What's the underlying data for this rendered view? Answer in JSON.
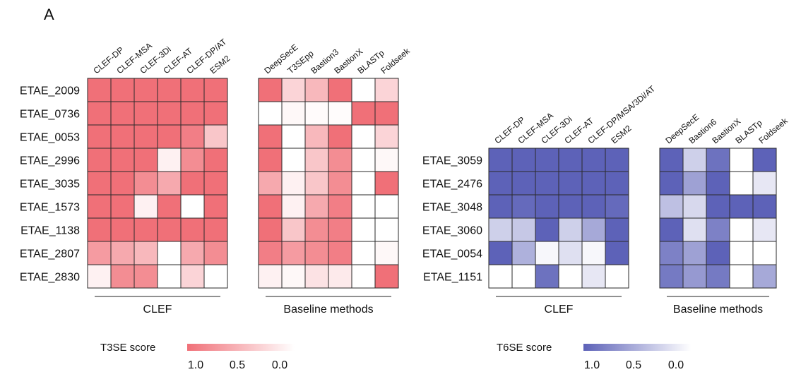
{
  "panel_label": "A",
  "chart_data": [
    {
      "type": "heatmap",
      "id": "t3se",
      "rows": [
        "ETAE_2009",
        "ETAE_0736",
        "ETAE_0053",
        "ETAE_2996",
        "ETAE_3035",
        "ETAE_1573",
        "ETAE_1138",
        "ETAE_2807",
        "ETAE_2830"
      ],
      "groups": [
        {
          "label": "CLEF",
          "columns": [
            "CLEF-DP",
            "CLEF-MSA",
            "CLEF-3Di",
            "CLEF-AT",
            "CLEF-DP/AT",
            "ESM2"
          ],
          "values": [
            [
              1.0,
              1.0,
              1.0,
              1.0,
              1.0,
              1.0
            ],
            [
              1.0,
              1.0,
              1.0,
              1.0,
              1.0,
              1.0
            ],
            [
              1.0,
              1.0,
              1.0,
              1.0,
              0.9,
              0.4
            ],
            [
              1.0,
              1.0,
              1.0,
              0.1,
              0.8,
              1.0
            ],
            [
              1.0,
              1.0,
              0.8,
              0.6,
              1.0,
              1.0
            ],
            [
              1.0,
              1.0,
              0.1,
              1.0,
              0.0,
              1.0
            ],
            [
              1.0,
              1.0,
              1.0,
              1.0,
              1.0,
              1.0
            ],
            [
              0.7,
              0.6,
              0.5,
              0.0,
              0.6,
              0.8
            ],
            [
              0.1,
              0.8,
              0.8,
              0.0,
              0.3,
              0.0
            ]
          ]
        },
        {
          "label": "Baseline methods",
          "columns": [
            "DeepSecE",
            "T3SEpp",
            "Bastion3",
            "BastionX",
            "BLASTp",
            "Foldseek"
          ],
          "values": [
            [
              1.0,
              0.3,
              0.5,
              1.0,
              0.0,
              0.3
            ],
            [
              0.0,
              0.05,
              0.03,
              0.02,
              1.0,
              1.0
            ],
            [
              1.0,
              0.0,
              0.5,
              1.0,
              0.0,
              0.3
            ],
            [
              1.0,
              0.0,
              0.4,
              0.8,
              0.0,
              0.05
            ],
            [
              0.6,
              0.1,
              0.4,
              0.8,
              0.0,
              1.0
            ],
            [
              1.0,
              0.1,
              0.6,
              0.9,
              0.0,
              0.0
            ],
            [
              1.0,
              0.4,
              0.8,
              0.9,
              0.0,
              0.0
            ],
            [
              0.9,
              0.7,
              0.8,
              0.9,
              0.0,
              0.05
            ],
            [
              0.1,
              0.05,
              0.2,
              0.15,
              0.0,
              1.0
            ]
          ]
        }
      ],
      "colorbar": {
        "label": "T3SE score",
        "ticks": [
          "1.0",
          "0.5",
          "0.0"
        ],
        "color_max": "#f07078",
        "color_min": "#ffffff"
      }
    },
    {
      "type": "heatmap",
      "id": "t6se",
      "rows": [
        "ETAE_3059",
        "ETAE_2476",
        "ETAE_3048",
        "ETAE_3060",
        "ETAE_0054",
        "ETAE_1151"
      ],
      "groups": [
        {
          "label": "CLEF",
          "columns": [
            "CLEF-DP",
            "CLEF-MSA",
            "CLEF-3Di",
            "CLEF-AT",
            "CLEF-DP/MSA/3Di/AT",
            "ESM2"
          ],
          "values": [
            [
              1.0,
              1.0,
              1.0,
              1.0,
              1.0,
              1.0
            ],
            [
              1.0,
              1.0,
              1.0,
              1.0,
              1.0,
              1.0
            ],
            [
              1.0,
              0.95,
              1.0,
              1.0,
              1.0,
              0.95
            ],
            [
              0.3,
              0.35,
              1.0,
              0.3,
              0.55,
              1.0
            ],
            [
              1.0,
              0.5,
              0.05,
              0.2,
              0.05,
              1.0
            ],
            [
              0.0,
              0.0,
              0.9,
              0.0,
              0.15,
              0.0
            ]
          ]
        },
        {
          "label": "Baseline methods",
          "columns": [
            "DeepSecE",
            "Bastion6",
            "BastionX",
            "BLASTp",
            "Foldseek"
          ],
          "values": [
            [
              1.0,
              0.3,
              0.9,
              0.0,
              1.0
            ],
            [
              1.0,
              0.6,
              1.0,
              0.0,
              0.15
            ],
            [
              0.4,
              0.25,
              1.0,
              1.0,
              1.0
            ],
            [
              1.0,
              0.2,
              0.8,
              0.0,
              0.15
            ],
            [
              0.8,
              0.6,
              1.0,
              0.0,
              0.0
            ],
            [
              0.85,
              0.65,
              0.85,
              0.0,
              0.55
            ]
          ]
        }
      ],
      "colorbar": {
        "label": "T6SE score",
        "ticks": [
          "1.0",
          "0.5",
          "0.0"
        ],
        "color_max": "#5d62b8",
        "color_min": "#ffffff"
      }
    }
  ]
}
